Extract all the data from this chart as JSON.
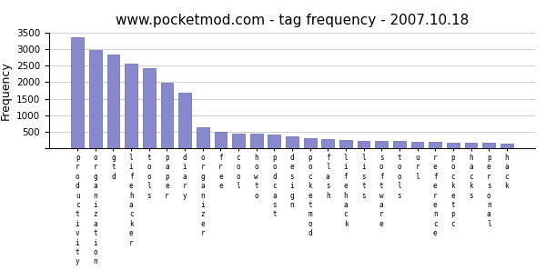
{
  "title": "www.pocketmod.com - tag frequency - 2007.10.18",
  "ylabel": "Frequency",
  "tag_labels": [
    "productivity",
    "organization",
    "gtd",
    "lifehacker",
    "tools",
    "paper",
    "diary",
    "organizer",
    "free",
    "cool",
    "howto",
    "podcast",
    "design",
    "pocketmod",
    "flash",
    "lifehack",
    "lists",
    "software",
    "tools",
    "url",
    "reference",
    "pocketpc",
    "hacks",
    "personal",
    "hack"
  ],
  "values": [
    3350,
    2980,
    2840,
    2560,
    2430,
    1970,
    1680,
    640,
    500,
    450,
    450,
    420,
    360,
    310,
    280,
    260,
    240,
    230,
    220,
    215,
    200,
    185,
    175,
    165,
    155
  ],
  "bar_color": "#8888cc",
  "bar_edge_color": "#6666aa",
  "background_color": "#ffffff",
  "ylim": [
    0,
    3500
  ],
  "yticks": [
    0,
    500,
    1000,
    1500,
    2000,
    2500,
    3000,
    3500
  ],
  "grid_color": "#bbbbbb",
  "title_fontsize": 11,
  "axis_label_fontsize": 9,
  "tick_fontsize": 7.5
}
